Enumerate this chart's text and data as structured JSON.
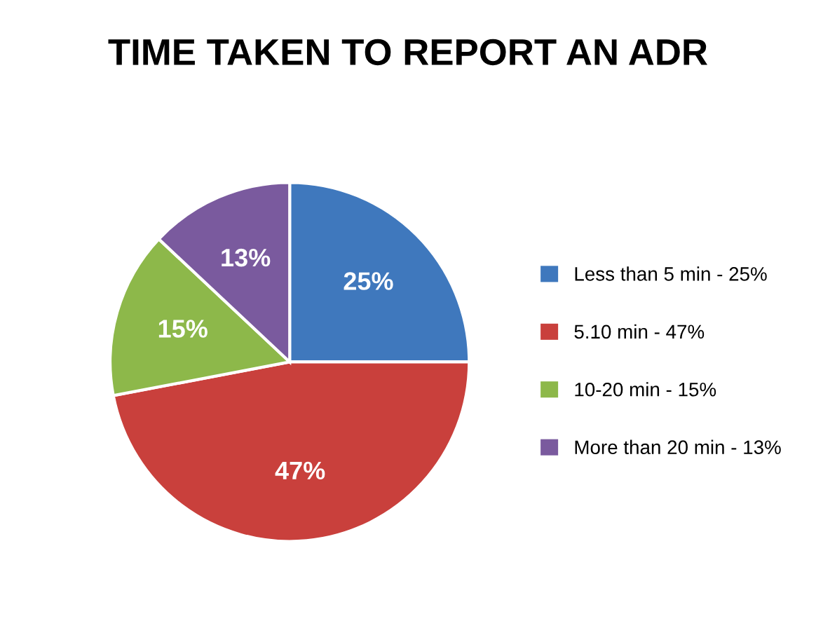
{
  "chart_data": {
    "type": "pie",
    "title": "TIME TAKEN TO REPORT AN ADR",
    "categories": [
      "Less than 5 min - 25%",
      "5.10 min - 47%",
      "10-20 min - 15%",
      "More than 20 min - 13%"
    ],
    "values": [
      25,
      47,
      15,
      13
    ],
    "colors": [
      "#3f78bd",
      "#c9403c",
      "#8db84a",
      "#7a5a9e"
    ],
    "value_labels": [
      "25%",
      "47%",
      "15%",
      "13%"
    ],
    "legend": "right"
  }
}
